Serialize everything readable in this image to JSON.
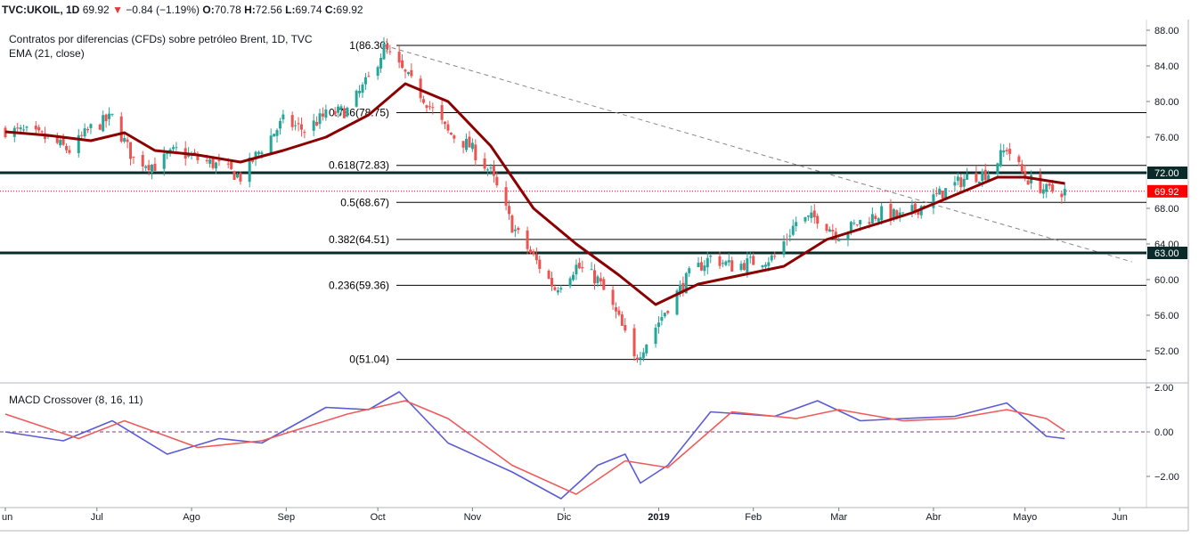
{
  "header": {
    "symbol": "TVC:UKOIL, 1D",
    "last": "69.92",
    "arrow": "▼",
    "change": "−0.84 (−1.19%)",
    "o_label": "O:",
    "o_value": "70.78",
    "h_label": "H:",
    "h_value": "72.56",
    "l_label": "L:",
    "l_value": "69.74",
    "c_label": "C:",
    "c_value": "69.92"
  },
  "chart_data": [
    {
      "type": "candlestick",
      "title": "Contratos por diferencias (CFDs) sobre petróleo Brent, 1D, TVC",
      "indicator_label": "EMA (21, close)",
      "x_ticks": [
        "un",
        "Jul",
        "Ago",
        "Sep",
        "Oct",
        "Nov",
        "Dic",
        "2019",
        "Feb",
        "Mar",
        "Abr",
        "Mayo",
        "Jun"
      ],
      "y_ticks": [
        "88.00",
        "84.00",
        "80.00",
        "76.00",
        "72.00",
        "68.00",
        "64.00",
        "60.00",
        "56.00",
        "52.00"
      ],
      "ylim": [
        49.5,
        89.5
      ],
      "grid": false,
      "close_path": [
        [
          "2018-06-01",
          76.8
        ],
        [
          "2018-06-08",
          76.5
        ],
        [
          "2018-06-15",
          75.8
        ],
        [
          "2018-06-22",
          74.5
        ],
        [
          "2018-06-29",
          77.0
        ],
        [
          "2018-07-06",
          78.2
        ],
        [
          "2018-07-13",
          73.5
        ],
        [
          "2018-07-20",
          72.8
        ],
        [
          "2018-07-27",
          74.5
        ],
        [
          "2018-08-03",
          73.5
        ],
        [
          "2018-08-10",
          72.8
        ],
        [
          "2018-08-17",
          71.5
        ],
        [
          "2018-08-24",
          74.8
        ],
        [
          "2018-08-31",
          77.8
        ],
        [
          "2018-09-07",
          76.8
        ],
        [
          "2018-09-14",
          78.5
        ],
        [
          "2018-09-21",
          79.0
        ],
        [
          "2018-09-28",
          82.5
        ],
        [
          "2018-10-03",
          86.0
        ],
        [
          "2018-10-10",
          83.0
        ],
        [
          "2018-10-17",
          80.0
        ],
        [
          "2018-10-24",
          76.5
        ],
        [
          "2018-10-31",
          75.0
        ],
        [
          "2018-11-07",
          72.0
        ],
        [
          "2018-11-14",
          66.0
        ],
        [
          "2018-11-21",
          62.5
        ],
        [
          "2018-11-28",
          59.0
        ],
        [
          "2018-12-05",
          61.5
        ],
        [
          "2018-12-12",
          60.0
        ],
        [
          "2018-12-19",
          55.5
        ],
        [
          "2018-12-24",
          51.0
        ],
        [
          "2018-12-28",
          53.0
        ],
        [
          "2019-01-04",
          57.0
        ],
        [
          "2019-01-11",
          60.5
        ],
        [
          "2019-01-18",
          62.5
        ],
        [
          "2019-01-25",
          61.5
        ],
        [
          "2019-02-01",
          62.0
        ],
        [
          "2019-02-08",
          62.5
        ],
        [
          "2019-02-15",
          66.5
        ],
        [
          "2019-02-22",
          67.0
        ],
        [
          "2019-03-01",
          65.0
        ],
        [
          "2019-03-08",
          66.5
        ],
        [
          "2019-03-15",
          67.5
        ],
        [
          "2019-03-22",
          67.0
        ],
        [
          "2019-03-29",
          68.5
        ],
        [
          "2019-04-05",
          70.0
        ],
        [
          "2019-04-12",
          71.5
        ],
        [
          "2019-04-19",
          72.0
        ],
        [
          "2019-04-25",
          74.8
        ],
        [
          "2019-05-01",
          71.5
        ],
        [
          "2019-05-08",
          70.0
        ],
        [
          "2019-05-14",
          69.92
        ]
      ],
      "ema_path": [
        [
          "2018-06-01",
          76.6
        ],
        [
          "2018-06-15",
          76.2
        ],
        [
          "2018-06-29",
          75.6
        ],
        [
          "2018-07-10",
          76.5
        ],
        [
          "2018-07-20",
          74.5
        ],
        [
          "2018-08-03",
          74.0
        ],
        [
          "2018-08-17",
          73.2
        ],
        [
          "2018-08-31",
          74.5
        ],
        [
          "2018-09-14",
          76.0
        ],
        [
          "2018-09-28",
          78.5
        ],
        [
          "2018-10-10",
          82.0
        ],
        [
          "2018-10-24",
          80.0
        ],
        [
          "2018-11-07",
          75.0
        ],
        [
          "2018-11-21",
          68.0
        ],
        [
          "2018-12-05",
          64.0
        ],
        [
          "2018-12-19",
          60.5
        ],
        [
          "2018-12-31",
          57.2
        ],
        [
          "2019-01-14",
          59.5
        ],
        [
          "2019-01-28",
          60.5
        ],
        [
          "2019-02-11",
          61.5
        ],
        [
          "2019-02-25",
          64.5
        ],
        [
          "2019-03-11",
          66.0
        ],
        [
          "2019-03-25",
          67.5
        ],
        [
          "2019-04-08",
          69.5
        ],
        [
          "2019-04-22",
          71.5
        ],
        [
          "2019-05-01",
          71.5
        ],
        [
          "2019-05-14",
          70.8
        ]
      ],
      "last_price": "69.92",
      "horizontal_levels": [
        "72.00",
        "63.00"
      ],
      "fibonacci": [
        {
          "label": "1(86.30)",
          "value": 86.3
        },
        {
          "label": "0.786(78.75)",
          "value": 78.75
        },
        {
          "label": "0.618(72.83)",
          "value": 72.83
        },
        {
          "label": "0.5(68.67)",
          "value": 68.67
        },
        {
          "label": "0.382(64.51)",
          "value": 64.51
        },
        {
          "label": "0.236(59.36)",
          "value": 59.36
        },
        {
          "label": "0(51.04)",
          "value": 51.04
        }
      ],
      "trendline": {
        "from": [
          "2018-10-03",
          86.3
        ],
        "to": [
          "2019-06-05",
          62.0
        ]
      },
      "colors": {
        "up": "#26a69a",
        "down": "#ef5350",
        "ema": "#8b0000",
        "last_price": "#ff0000"
      }
    },
    {
      "type": "line",
      "title": "MACD Crossover (8, 16, 11)",
      "y_ticks": [
        "2.00",
        "0.00",
        "−2.00"
      ],
      "ylim": [
        -3.2,
        2.0
      ],
      "series": [
        {
          "color": "#5b5bd6",
          "points": [
            [
              "2018-06-01",
              0.0
            ],
            [
              "2018-06-20",
              -0.4
            ],
            [
              "2018-07-06",
              0.5
            ],
            [
              "2018-07-24",
              -1.0
            ],
            [
              "2018-08-10",
              -0.3
            ],
            [
              "2018-08-24",
              -0.5
            ],
            [
              "2018-09-14",
              1.1
            ],
            [
              "2018-09-28",
              1.0
            ],
            [
              "2018-10-08",
              1.8
            ],
            [
              "2018-10-24",
              -0.5
            ],
            [
              "2018-11-14",
              -1.8
            ],
            [
              "2018-11-30",
              -3.0
            ],
            [
              "2018-12-12",
              -1.5
            ],
            [
              "2018-12-21",
              -1.0
            ],
            [
              "2018-12-26",
              -2.3
            ],
            [
              "2019-01-04",
              -1.5
            ],
            [
              "2019-01-18",
              0.9
            ],
            [
              "2019-02-08",
              0.7
            ],
            [
              "2019-02-22",
              1.4
            ],
            [
              "2019-03-08",
              0.5
            ],
            [
              "2019-03-22",
              0.6
            ],
            [
              "2019-04-08",
              0.7
            ],
            [
              "2019-04-25",
              1.3
            ],
            [
              "2019-05-08",
              -0.2
            ],
            [
              "2019-05-14",
              -0.3
            ]
          ]
        },
        {
          "color": "#f05a5a",
          "points": [
            [
              "2018-06-01",
              0.8
            ],
            [
              "2018-06-25",
              -0.3
            ],
            [
              "2018-07-10",
              0.5
            ],
            [
              "2018-08-03",
              -0.7
            ],
            [
              "2018-08-24",
              -0.4
            ],
            [
              "2018-09-21",
              0.8
            ],
            [
              "2018-10-10",
              1.4
            ],
            [
              "2018-10-24",
              0.6
            ],
            [
              "2018-11-14",
              -1.5
            ],
            [
              "2018-12-05",
              -2.8
            ],
            [
              "2018-12-21",
              -1.3
            ],
            [
              "2019-01-04",
              -1.6
            ],
            [
              "2019-01-25",
              0.9
            ],
            [
              "2019-02-15",
              0.6
            ],
            [
              "2019-03-01",
              1.0
            ],
            [
              "2019-03-22",
              0.5
            ],
            [
              "2019-04-08",
              0.6
            ],
            [
              "2019-04-25",
              1.0
            ],
            [
              "2019-05-08",
              0.6
            ],
            [
              "2019-05-14",
              0.05
            ]
          ]
        }
      ]
    }
  ]
}
